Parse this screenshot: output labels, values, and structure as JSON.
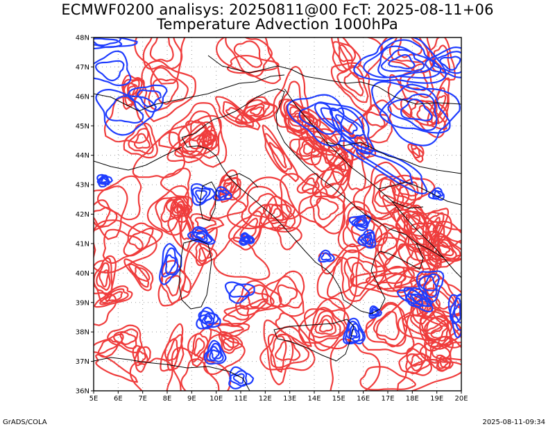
{
  "title_line1": "ECMWF0200 analisys: 20250811@00 FcT: 2025-08-11+06",
  "title_line2": "Temperature Advection 1000hPa",
  "lat_labels": [
    "48N",
    "47N",
    "46N",
    "45N",
    "44N",
    "43N",
    "42N",
    "41N",
    "40N",
    "39N",
    "38N",
    "37N",
    "36N"
  ],
  "lon_labels": [
    "5E",
    "6E",
    "7E",
    "8E",
    "9E",
    "10E",
    "11E",
    "12E",
    "13E",
    "14E",
    "15E",
    "16E",
    "17E",
    "18E",
    "19E",
    "20E"
  ],
  "colors": {
    "warm": "#f03c3c",
    "cold": "#1e3cff",
    "coast": "#000000",
    "grid": "#999999"
  },
  "footer_left": "GrADS/COLA",
  "footer_right": "2025-08-11-09:34"
}
